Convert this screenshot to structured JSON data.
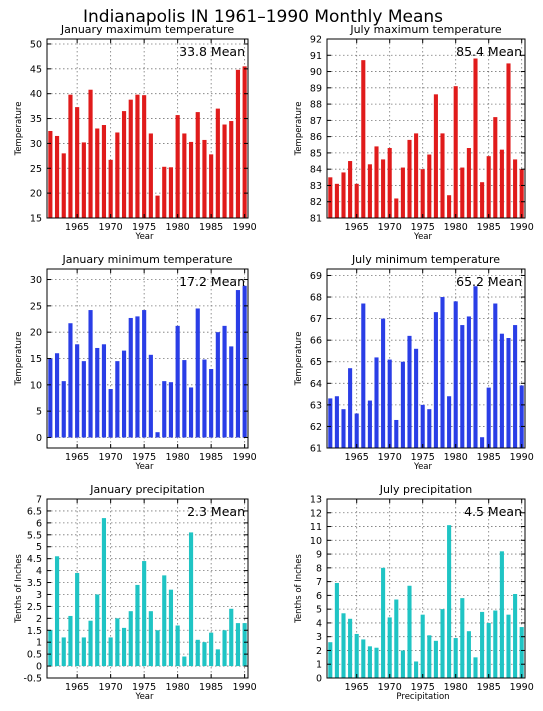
{
  "title": "Indianapolis IN   1961–1990 Monthly Means",
  "colors": {
    "red": "#e01b1b",
    "blue": "#2a3ee6",
    "teal": "#1fc4c4"
  },
  "chart_data": [
    {
      "type": "bar",
      "title": "January maximum temperature",
      "mean_label": "33.8 Mean",
      "xlabel": "Year",
      "ylabel": "Temperature",
      "color": "red",
      "xlim": [
        1961,
        1990
      ],
      "ylim": [
        15,
        51
      ],
      "yticks": [
        15,
        20,
        25,
        30,
        35,
        40,
        45,
        50
      ],
      "xticks": [
        1965,
        1970,
        1975,
        1980,
        1985,
        1990
      ],
      "x": [
        1961,
        1962,
        1963,
        1964,
        1965,
        1966,
        1967,
        1968,
        1969,
        1970,
        1971,
        1972,
        1973,
        1974,
        1975,
        1976,
        1977,
        1978,
        1979,
        1980,
        1981,
        1982,
        1983,
        1984,
        1985,
        1986,
        1987,
        1988,
        1989,
        1990
      ],
      "values": [
        32.5,
        31.5,
        28.0,
        39.8,
        37.3,
        30.2,
        40.8,
        33.0,
        33.7,
        26.7,
        32.2,
        36.5,
        38.8,
        39.8,
        39.7,
        32.0,
        19.5,
        25.3,
        25.2,
        35.7,
        32.0,
        30.3,
        36.3,
        30.7,
        27.8,
        37.0,
        33.8,
        34.5,
        44.8,
        45.5
      ]
    },
    {
      "type": "bar",
      "title": "July maximum temperature",
      "mean_label": "85.4 Mean",
      "xlabel": "Year",
      "ylabel": "Temperature",
      "color": "red",
      "xlim": [
        1961,
        1990
      ],
      "ylim": [
        81,
        92
      ],
      "yticks": [
        81,
        82,
        83,
        84,
        85,
        86,
        87,
        88,
        89,
        90,
        91,
        92
      ],
      "xticks": [
        1965,
        1970,
        1975,
        1980,
        1985,
        1990
      ],
      "x": [
        1961,
        1962,
        1963,
        1964,
        1965,
        1966,
        1967,
        1968,
        1969,
        1970,
        1971,
        1972,
        1973,
        1974,
        1975,
        1976,
        1977,
        1978,
        1979,
        1980,
        1981,
        1982,
        1983,
        1984,
        1985,
        1986,
        1987,
        1988,
        1989,
        1990
      ],
      "values": [
        83.5,
        83.1,
        83.8,
        84.5,
        83.1,
        90.7,
        84.3,
        85.4,
        84.6,
        85.3,
        82.2,
        84.1,
        85.8,
        86.2,
        84.0,
        84.9,
        88.6,
        86.2,
        82.4,
        89.1,
        84.1,
        85.3,
        90.8,
        83.2,
        84.8,
        87.2,
        85.2,
        90.5,
        84.6,
        84.0
      ]
    },
    {
      "type": "bar",
      "title": "January minimum temperature",
      "mean_label": "17.2 Mean",
      "xlabel": "Year",
      "ylabel": "Temperature",
      "color": "blue",
      "xlim": [
        1961,
        1990
      ],
      "ylim": [
        -2,
        32
      ],
      "yticks": [
        0,
        5,
        10,
        15,
        20,
        25,
        30
      ],
      "xticks": [
        1965,
        1970,
        1975,
        1980,
        1985,
        1990
      ],
      "x": [
        1961,
        1962,
        1963,
        1964,
        1965,
        1966,
        1967,
        1968,
        1969,
        1970,
        1971,
        1972,
        1973,
        1974,
        1975,
        1976,
        1977,
        1978,
        1979,
        1980,
        1981,
        1982,
        1983,
        1984,
        1985,
        1986,
        1987,
        1988,
        1989,
        1990
      ],
      "values": [
        15.0,
        16.0,
        10.7,
        21.7,
        17.7,
        14.5,
        24.2,
        17.0,
        17.7,
        9.2,
        14.5,
        16.5,
        22.7,
        23.0,
        24.2,
        15.7,
        1.0,
        10.7,
        10.5,
        21.2,
        14.7,
        9.5,
        24.5,
        14.8,
        13.0,
        20.0,
        21.2,
        17.3,
        28.0,
        28.8
      ]
    },
    {
      "type": "bar",
      "title": "July minimum temperature",
      "mean_label": "65.2 Mean",
      "xlabel": "Year",
      "ylabel": "Temperature",
      "color": "blue",
      "xlim": [
        1961,
        1990
      ],
      "ylim": [
        61,
        69.3
      ],
      "yticks": [
        61,
        62,
        63,
        64,
        65,
        66,
        67,
        68,
        69
      ],
      "xticks": [
        1965,
        1970,
        1975,
        1980,
        1985,
        1990
      ],
      "x": [
        1961,
        1962,
        1963,
        1964,
        1965,
        1966,
        1967,
        1968,
        1969,
        1970,
        1971,
        1972,
        1973,
        1974,
        1975,
        1976,
        1977,
        1978,
        1979,
        1980,
        1981,
        1982,
        1983,
        1984,
        1985,
        1986,
        1987,
        1988,
        1989,
        1990
      ],
      "values": [
        63.3,
        63.4,
        62.8,
        64.7,
        62.6,
        67.7,
        63.2,
        65.2,
        67.0,
        65.1,
        62.3,
        65.0,
        66.2,
        65.6,
        63.0,
        62.8,
        67.3,
        68.0,
        63.4,
        67.8,
        66.7,
        67.1,
        68.5,
        61.5,
        63.8,
        67.7,
        66.3,
        66.1,
        66.7,
        63.9
      ]
    },
    {
      "type": "bar",
      "title": "January precipitation",
      "mean_label": "2.3 Mean",
      "xlabel": "Year",
      "ylabel": "Tenths of Inches",
      "color": "teal",
      "xlim": [
        1961,
        1990
      ],
      "ylim": [
        -0.5,
        7
      ],
      "yticks": [
        -0.5,
        0,
        0.5,
        1,
        1.5,
        2,
        2.5,
        3,
        3.5,
        4,
        4.5,
        5,
        5.5,
        6,
        6.5,
        7
      ],
      "xticks": [
        1965,
        1970,
        1975,
        1980,
        1985,
        1990
      ],
      "x": [
        1961,
        1962,
        1963,
        1964,
        1965,
        1966,
        1967,
        1968,
        1969,
        1970,
        1971,
        1972,
        1973,
        1974,
        1975,
        1976,
        1977,
        1978,
        1979,
        1980,
        1981,
        1982,
        1983,
        1984,
        1985,
        1986,
        1987,
        1988,
        1989,
        1990
      ],
      "values": [
        1.5,
        4.6,
        1.2,
        2.1,
        3.9,
        1.2,
        1.9,
        3.0,
        6.2,
        1.2,
        2.0,
        1.6,
        2.3,
        3.4,
        4.4,
        2.3,
        1.5,
        3.8,
        3.2,
        1.7,
        0.4,
        5.6,
        1.1,
        1.0,
        1.4,
        0.7,
        1.5,
        2.4,
        1.8,
        1.8
      ]
    },
    {
      "type": "bar",
      "title": "July precipitation",
      "mean_label": "4.5 Mean",
      "xlabel": "Precipitation",
      "ylabel": "Tenths of Inches",
      "color": "teal",
      "xlim": [
        1961,
        1990
      ],
      "ylim": [
        0,
        13
      ],
      "yticks": [
        0,
        1,
        2,
        3,
        4,
        5,
        6,
        7,
        8,
        9,
        10,
        11,
        12,
        13
      ],
      "xticks": [
        1965,
        1970,
        1975,
        1980,
        1985,
        1990
      ],
      "x": [
        1961,
        1962,
        1963,
        1964,
        1965,
        1966,
        1967,
        1968,
        1969,
        1970,
        1971,
        1972,
        1973,
        1974,
        1975,
        1976,
        1977,
        1978,
        1979,
        1980,
        1981,
        1982,
        1983,
        1984,
        1985,
        1986,
        1987,
        1988,
        1989,
        1990
      ],
      "values": [
        2.6,
        6.9,
        4.7,
        4.3,
        3.2,
        2.8,
        2.3,
        2.2,
        8.0,
        4.4,
        5.7,
        2.0,
        6.7,
        1.2,
        4.6,
        3.1,
        2.7,
        5.0,
        11.1,
        2.9,
        5.8,
        3.4,
        1.5,
        4.8,
        4.0,
        4.9,
        9.2,
        4.6,
        6.1,
        3.7
      ]
    }
  ]
}
